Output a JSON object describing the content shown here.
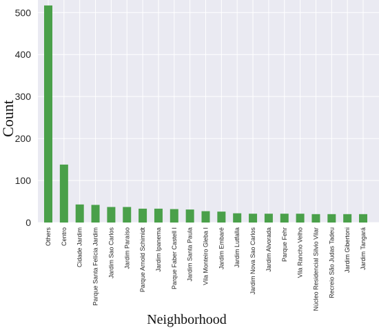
{
  "chart_data": {
    "type": "bar",
    "title": "",
    "xlabel": "Neighborhood",
    "ylabel": "Count",
    "ylim": [
      0,
      530
    ],
    "yticks": [
      0,
      100,
      200,
      300,
      400,
      500
    ],
    "grid": true,
    "colors": {
      "bar": "#4aa04a",
      "plot_bg": "#eaeaf2",
      "grid": "#ffffff"
    },
    "categories": [
      "Others",
      "Centro",
      "Cidade Jardim",
      "Parque Santa Felícia Jardim",
      "Jardim Sao Carlos",
      "Jardim Paraíso",
      "Parque Arnold Schimidt",
      "Jardim Ipanema",
      "Parque Faber Castell I",
      "Jardim Santa Paula",
      "Vila Monteiro Gleba I",
      "Jardim Embaré",
      "Jardim Lutfalla",
      "Jardim Nova Sao Carlos",
      "Jardim Alvorada",
      "Parque Fehr",
      "Vila Rancho Velho",
      "Núcleo Residencial Silvio Vilar",
      "Recreio São Judas Tadeu",
      "Jardim Gibertoni",
      "Jardim Tangará"
    ],
    "values": [
      517,
      138,
      43,
      42,
      37,
      37,
      33,
      33,
      32,
      31,
      27,
      26,
      22,
      21,
      21,
      21,
      21,
      20,
      20,
      20,
      20
    ]
  }
}
